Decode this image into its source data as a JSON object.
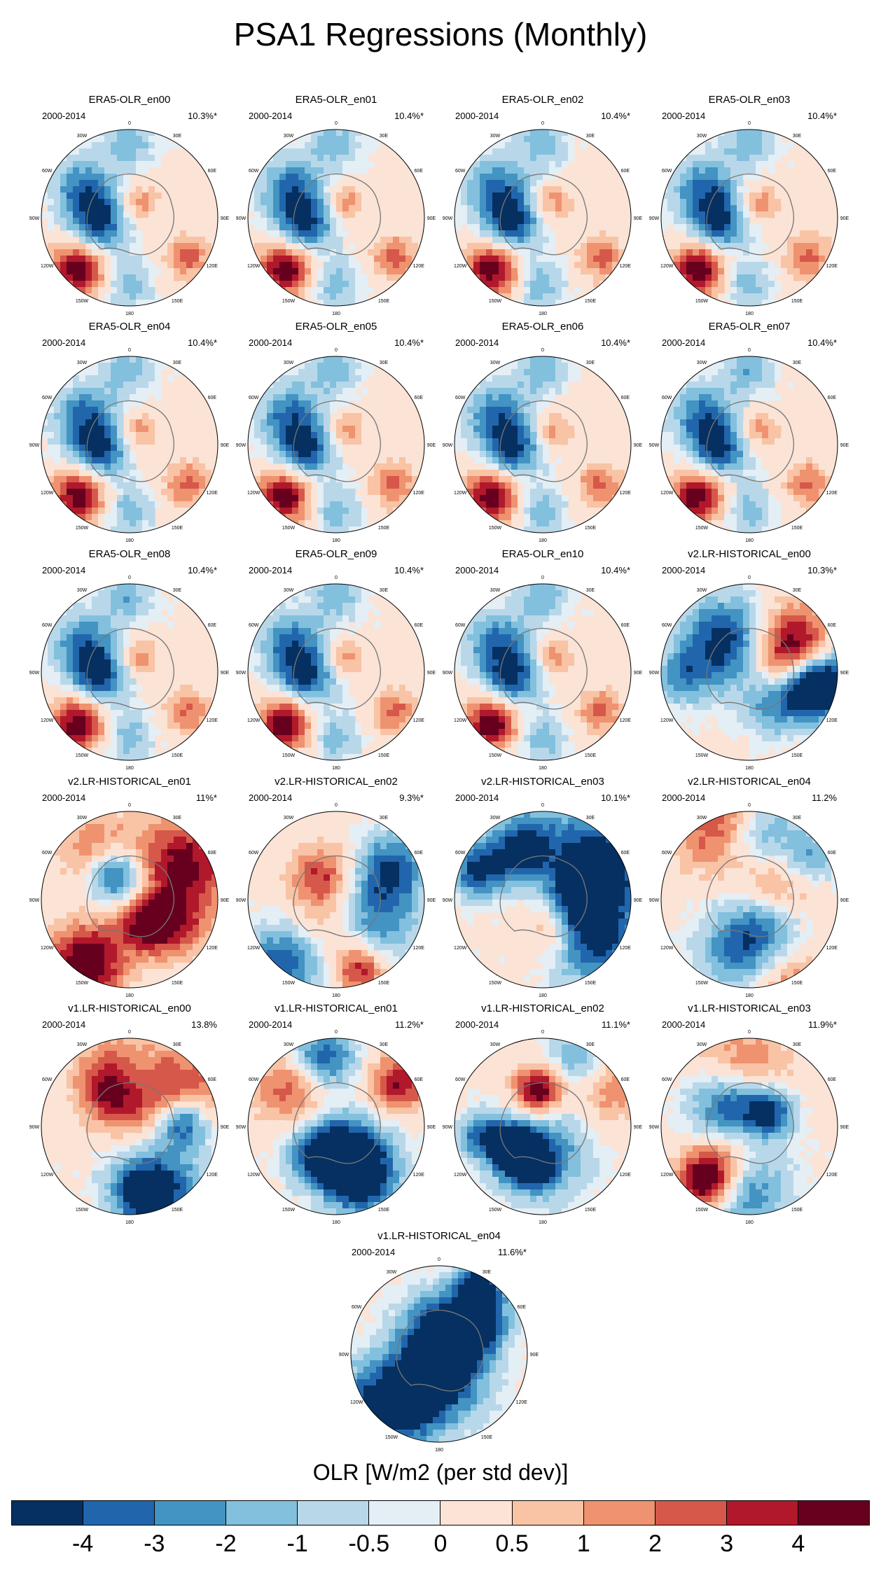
{
  "chart_data": {
    "type": "heatmap",
    "title": "PSA1 Regressions (Monthly)",
    "projection": "south polar stereographic",
    "longitude_labels": [
      "0",
      "30E",
      "60E",
      "90E",
      "120E",
      "150E",
      "180",
      "150W",
      "120W",
      "90W",
      "60W",
      "30W"
    ],
    "colorbar": {
      "title": "OLR [W/m2 (per std dev)]",
      "levels": [
        "-4",
        "-3",
        "-2",
        "-1",
        "-0.5",
        "0",
        "0.5",
        "1",
        "2",
        "3",
        "4"
      ],
      "colors": [
        "#053061",
        "#2166ac",
        "#4393c3",
        "#82c0de",
        "#b8d8ea",
        "#e4eef5",
        "#fbe3d6",
        "#f9c3a5",
        "#ef9270",
        "#d6584a",
        "#b2182b",
        "#67001f"
      ]
    },
    "panels": [
      {
        "title": "ERA5-OLR_en00",
        "period": "2000-2014",
        "variance": "10.3%*"
      },
      {
        "title": "ERA5-OLR_en01",
        "period": "2000-2014",
        "variance": "10.4%*"
      },
      {
        "title": "ERA5-OLR_en02",
        "period": "2000-2014",
        "variance": "10.4%*"
      },
      {
        "title": "ERA5-OLR_en03",
        "period": "2000-2014",
        "variance": "10.4%*"
      },
      {
        "title": "ERA5-OLR_en04",
        "period": "2000-2014",
        "variance": "10.4%*"
      },
      {
        "title": "ERA5-OLR_en05",
        "period": "2000-2014",
        "variance": "10.4%*"
      },
      {
        "title": "ERA5-OLR_en06",
        "period": "2000-2014",
        "variance": "10.4%*"
      },
      {
        "title": "ERA5-OLR_en07",
        "period": "2000-2014",
        "variance": "10.4%*"
      },
      {
        "title": "ERA5-OLR_en08",
        "period": "2000-2014",
        "variance": "10.4%*"
      },
      {
        "title": "ERA5-OLR_en09",
        "period": "2000-2014",
        "variance": "10.4%*"
      },
      {
        "title": "ERA5-OLR_en10",
        "period": "2000-2014",
        "variance": "10.4%*"
      },
      {
        "title": "v2.LR-HISTORICAL_en00",
        "period": "2000-2014",
        "variance": "10.3%*"
      },
      {
        "title": "v2.LR-HISTORICAL_en01",
        "period": "2000-2014",
        "variance": "11%*"
      },
      {
        "title": "v2.LR-HISTORICAL_en02",
        "period": "2000-2014",
        "variance": "9.3%*"
      },
      {
        "title": "v2.LR-HISTORICAL_en03",
        "period": "2000-2014",
        "variance": "10.1%*"
      },
      {
        "title": "v2.LR-HISTORICAL_en04",
        "period": "2000-2014",
        "variance": "11.2%"
      },
      {
        "title": "v1.LR-HISTORICAL_en00",
        "period": "2000-2014",
        "variance": "13.8%"
      },
      {
        "title": "v1.LR-HISTORICAL_en01",
        "period": "2000-2014",
        "variance": "11.2%*"
      },
      {
        "title": "v1.LR-HISTORICAL_en02",
        "period": "2000-2014",
        "variance": "11.1%*"
      },
      {
        "title": "v1.LR-HISTORICAL_en03",
        "period": "2000-2014",
        "variance": "11.9%*"
      },
      {
        "title": "v1.LR-HISTORICAL_en04",
        "period": "2000-2014",
        "variance": "11.6%*"
      }
    ]
  }
}
